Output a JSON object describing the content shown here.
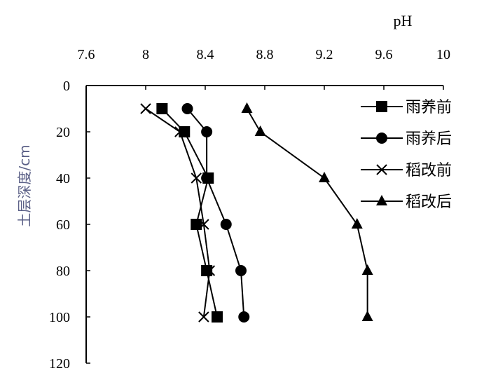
{
  "chart_data": {
    "type": "line",
    "title": "",
    "xlabel": "pH",
    "ylabel": "土层深度/cm",
    "xlim": [
      7.6,
      10
    ],
    "ylim": [
      0,
      120
    ],
    "x_axis_position": "top",
    "y_axis_inverted": true,
    "x_ticks": [
      "7.6",
      "8",
      "8.4",
      "8.8",
      "9.2",
      "9.6",
      "10"
    ],
    "y_ticks": [
      "0",
      "20",
      "40",
      "60",
      "80",
      "100",
      "120"
    ],
    "grid": false,
    "legend_position": "top-right",
    "depths": [
      10,
      20,
      40,
      60,
      80,
      100
    ],
    "series": [
      {
        "name": "雨养前",
        "marker": "square",
        "x": [
          8.11,
          8.26,
          8.42,
          8.34,
          8.41,
          8.48
        ]
      },
      {
        "name": "雨养后",
        "marker": "circle",
        "x": [
          8.28,
          8.41,
          8.41,
          8.54,
          8.64,
          8.66
        ]
      },
      {
        "name": "稻改前",
        "marker": "cross",
        "x": [
          8.0,
          8.23,
          8.34,
          8.39,
          8.43,
          8.39
        ]
      },
      {
        "name": "稻改后",
        "marker": "triangle",
        "x": [
          8.68,
          8.77,
          9.2,
          9.42,
          9.49,
          9.49
        ]
      }
    ],
    "colors": {
      "line": "#000000",
      "ylabel": "#5a5f86"
    }
  }
}
